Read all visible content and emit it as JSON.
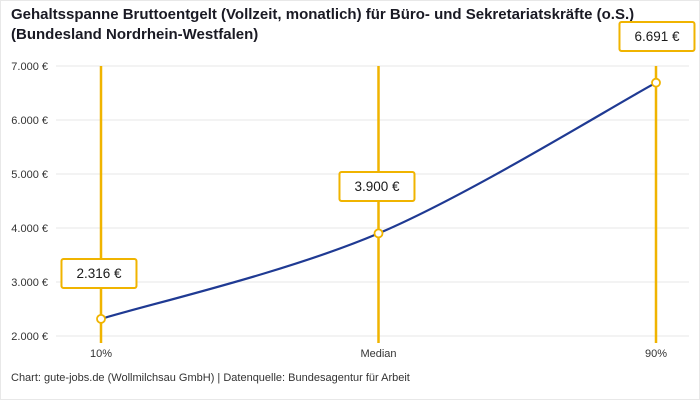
{
  "title": "Gehaltsspanne Bruttoentgelt (Vollzeit, monatlich) für Büro- und Sekretariatskräfte (o.S.) (Bundesland Nordrhein-Westfalen)",
  "footer": "Chart: gute-jobs.de (Wollmilchsau GmbH) | Datenquelle: Bundesagentur für Arbeit",
  "chart_data": {
    "type": "line",
    "title": "Gehaltsspanne Bruttoentgelt (Vollzeit, monatlich) für Büro- und Sekretariatskräfte (o.S.) (Bundesland Nordrhein-Westfalen)",
    "categories": [
      "10%",
      "Median",
      "90%"
    ],
    "values": [
      2316,
      3900,
      6691
    ],
    "point_labels": [
      "2.316 €",
      "3.900 €",
      "6.691 €"
    ],
    "xlabel": "",
    "ylabel": "",
    "ylim": [
      2000,
      7000
    ],
    "y_ticks": [
      2000,
      3000,
      4000,
      5000,
      6000,
      7000
    ],
    "y_tick_labels": [
      "2.000 €",
      "3.000 €",
      "4.000 €",
      "5.000 €",
      "6.000 €",
      "7.000 €"
    ],
    "grid": true,
    "legend_position": "none",
    "colors": {
      "line": "#1F3A93",
      "accent_gold": "#F0B400",
      "grid": "#E7E7E7",
      "tick_text": "#333333",
      "marker_fill": "#FFFFFF"
    }
  }
}
